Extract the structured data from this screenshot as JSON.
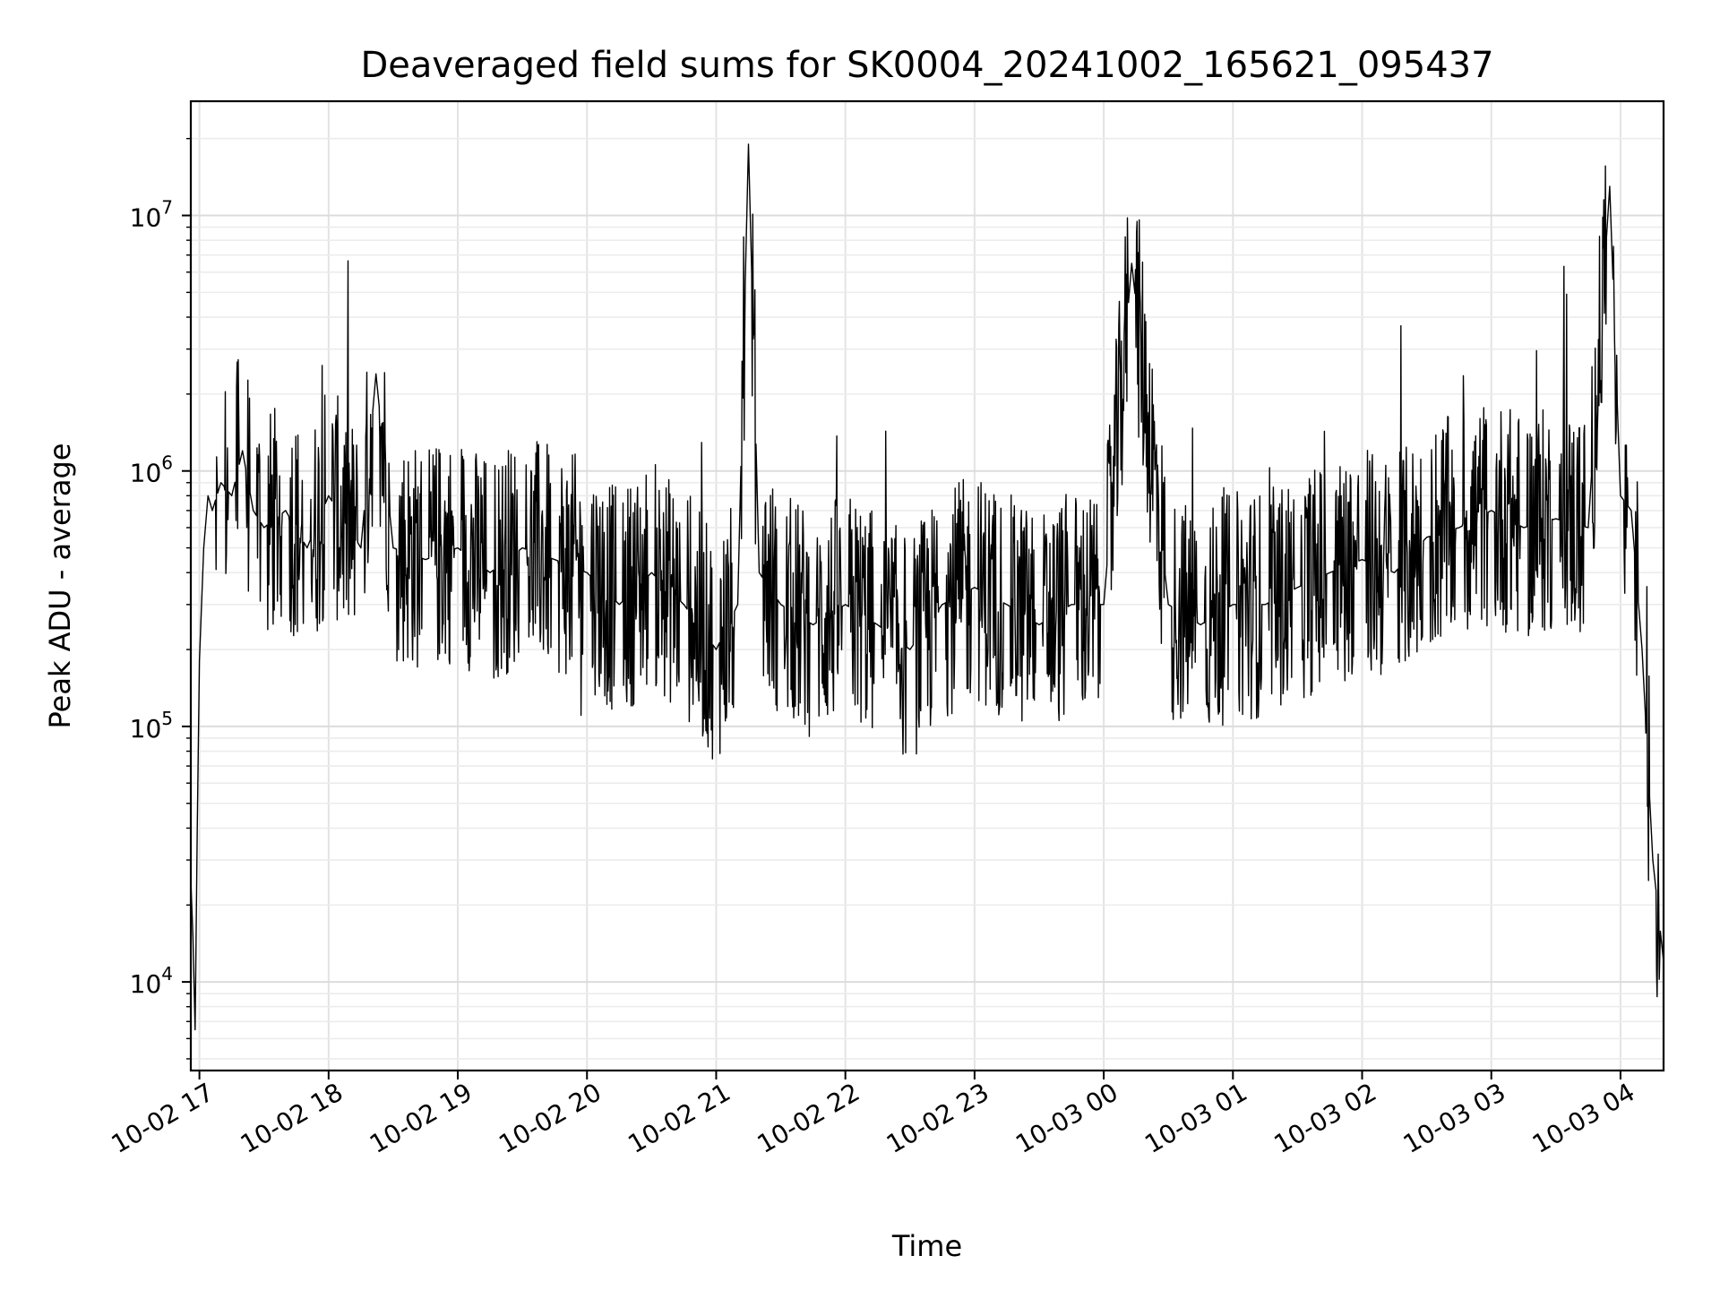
{
  "chart_data": {
    "type": "line",
    "title": "Deaveraged field sums for SK0004_20241002_165621_095437",
    "xlabel": "Time",
    "ylabel": "Peak ADU - average",
    "x_ticks": [
      "10-02 17",
      "10-02 18",
      "10-02 19",
      "10-02 20",
      "10-02 21",
      "10-02 22",
      "10-02 23",
      "10-03 00",
      "10-03 01",
      "10-03 02",
      "10-03 03",
      "10-03 04"
    ],
    "xlim": [
      "2024-10-02 16:56",
      "2024-10-03 04:20"
    ],
    "y_scale": "log",
    "ylim": [
      4500,
      28000000
    ],
    "y_ticks": [
      {
        "base": "10",
        "exp": "4",
        "value": 10000
      },
      {
        "base": "10",
        "exp": "5",
        "value": 100000
      },
      {
        "base": "10",
        "exp": "6",
        "value": 1000000
      },
      {
        "base": "10",
        "exp": "7",
        "value": 10000000
      }
    ],
    "grid": true,
    "line_color": "#000000",
    "series": [
      {
        "x": [
          "2024-10-02 16:56",
          "2024-10-02 16:57",
          "2024-10-02 16:58",
          "2024-10-02 16:59",
          "2024-10-02 17:00",
          "2024-10-02 17:02",
          "2024-10-02 17:04",
          "2024-10-02 17:06",
          "2024-10-02 17:10",
          "2024-10-02 17:15",
          "2024-10-02 17:20",
          "2024-10-02 17:25",
          "2024-10-02 17:30",
          "2024-10-02 17:40",
          "2024-10-02 17:50",
          "2024-10-02 18:00",
          "2024-10-02 18:15",
          "2024-10-02 18:22",
          "2024-10-02 18:30",
          "2024-10-02 18:45",
          "2024-10-02 19:00",
          "2024-10-02 19:15",
          "2024-10-02 19:30",
          "2024-10-02 19:45",
          "2024-10-02 20:00",
          "2024-10-02 20:15",
          "2024-10-02 20:30",
          "2024-10-02 20:45",
          "2024-10-02 21:00",
          "2024-10-02 21:10",
          "2024-10-02 21:15",
          "2024-10-02 21:20",
          "2024-10-02 21:30",
          "2024-10-02 21:45",
          "2024-10-02 22:00",
          "2024-10-02 22:15",
          "2024-10-02 22:30",
          "2024-10-02 22:45",
          "2024-10-02 23:00",
          "2024-10-02 23:15",
          "2024-10-02 23:30",
          "2024-10-02 23:45",
          "2024-10-03 00:00",
          "2024-10-03 00:13",
          "2024-10-03 00:30",
          "2024-10-03 00:45",
          "2024-10-03 01:00",
          "2024-10-03 01:15",
          "2024-10-03 01:30",
          "2024-10-03 01:45",
          "2024-10-03 02:00",
          "2024-10-03 02:15",
          "2024-10-03 02:30",
          "2024-10-03 02:45",
          "2024-10-03 03:00",
          "2024-10-03 03:15",
          "2024-10-03 03:30",
          "2024-10-03 03:45",
          "2024-10-03 03:55",
          "2024-10-03 04:00",
          "2024-10-03 04:05",
          "2024-10-03 04:10",
          "2024-10-03 04:15",
          "2024-10-03 04:20"
        ],
        "values": [
          25000,
          15000,
          6500,
          40000,
          180000,
          500000,
          800000,
          700000,
          900000,
          800000,
          1200000,
          700000,
          600000,
          700000,
          500000,
          800000,
          500000,
          2400000,
          500000,
          450000,
          500000,
          400000,
          500000,
          450000,
          400000,
          300000,
          400000,
          300000,
          200000,
          300000,
          19000000,
          400000,
          300000,
          250000,
          300000,
          250000,
          200000,
          300000,
          350000,
          300000,
          250000,
          300000,
          300000,
          6500000,
          300000,
          250000,
          300000,
          300000,
          350000,
          400000,
          450000,
          400000,
          550000,
          600000,
          700000,
          600000,
          650000,
          600000,
          13000000,
          800000,
          700000,
          200000,
          30000,
          12000
        ]
      }
    ]
  }
}
